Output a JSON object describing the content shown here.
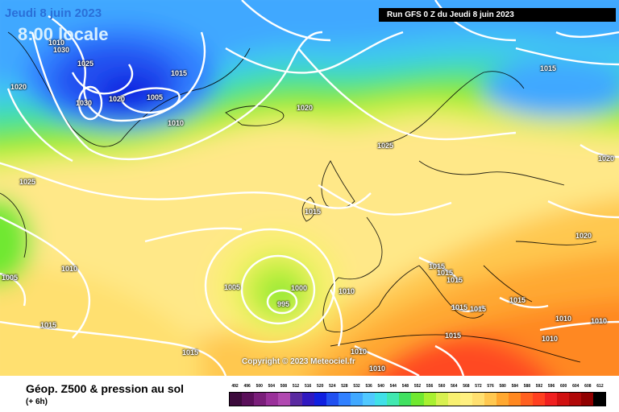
{
  "header": {
    "date": "Jeudi 8 juin 2023",
    "local_time": "8:00 locale",
    "run": "Run GFS 0 Z du Jeudi 8 juin 2023"
  },
  "copyright": "Copyright © 2023 Meteociel.fr",
  "footer": {
    "product": "Géop. Z500 & pression au sol",
    "offset": "(+ 6h)"
  },
  "pressure_labels": [
    "1010",
    "1030",
    "1025",
    "1020",
    "1015",
    "1030",
    "1020",
    "1005",
    "1010",
    "1015",
    "1020",
    "1025",
    "1020",
    "1025",
    "1015",
    "1010",
    "1005",
    "1005",
    "1000",
    "995",
    "1010",
    "1015",
    "1015",
    "1015",
    "1015",
    "1015",
    "1015",
    "1015",
    "1015",
    "1010",
    "1010",
    "1015",
    "1010",
    "1010",
    "1010",
    "1020"
  ],
  "scale": {
    "labels": [
      "492",
      "496",
      "500",
      "504",
      "508",
      "512",
      "516",
      "520",
      "524",
      "528",
      "532",
      "536",
      "540",
      "544",
      "548",
      "552",
      "556",
      "560",
      "564",
      "568",
      "572",
      "576",
      "580",
      "584",
      "588",
      "592",
      "596",
      "600",
      "604",
      "608",
      "612"
    ],
    "colors": [
      "#3c0a3c",
      "#5a0f5a",
      "#7a1e7a",
      "#9a309a",
      "#b048b0",
      "#5a2aa0",
      "#3018c0",
      "#1020e0",
      "#2050f0",
      "#3080ff",
      "#40a8ff",
      "#50c8ff",
      "#40e0e8",
      "#40e8b0",
      "#40e060",
      "#70e830",
      "#a8f030",
      "#d8f050",
      "#f8f070",
      "#fff080",
      "#ffe070",
      "#ffc850",
      "#ffa830",
      "#ff8820",
      "#ff6020",
      "#ff4020",
      "#f02020",
      "#d01010",
      "#b00808",
      "#900000",
      "#000000"
    ]
  }
}
